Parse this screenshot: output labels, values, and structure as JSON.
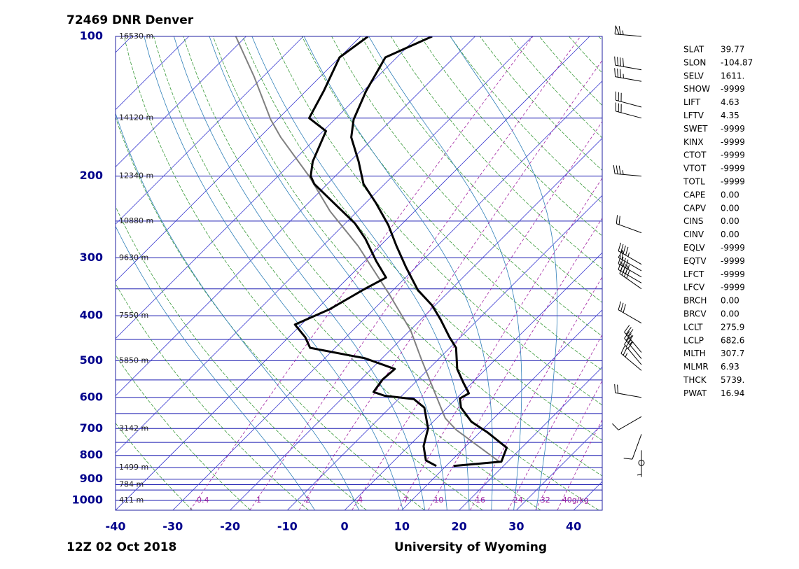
{
  "chart_data": {
    "type": "skewt",
    "title": "72469 DNR Denver",
    "subtitle": "12Z 02 Oct 2018",
    "source": "University of Wyoming",
    "ylim": [
      1050,
      100
    ],
    "yticks": [
      100,
      200,
      300,
      400,
      500,
      600,
      700,
      800,
      900,
      1000
    ],
    "xlim": [
      -40,
      45
    ],
    "xticks": [
      -40,
      -30,
      -20,
      -10,
      0,
      10,
      20,
      30,
      40
    ],
    "log_scale_y": true,
    "isobars": [
      100,
      150,
      200,
      250,
      300,
      350,
      400,
      450,
      500,
      550,
      600,
      650,
      700,
      750,
      800,
      850,
      900,
      925,
      950,
      1000
    ],
    "isotherms": [
      -120,
      -110,
      -100,
      -90,
      -80,
      -70,
      -60,
      -50,
      -40,
      -30,
      -20,
      -10,
      0,
      10,
      20,
      30,
      40
    ],
    "dry_adiabats": [
      -30,
      -20,
      -10,
      0,
      10,
      20,
      30,
      40,
      50,
      60,
      70,
      80,
      90,
      100,
      110,
      120,
      130,
      140,
      150,
      160,
      170,
      180
    ],
    "moist_adiabats": [
      -8,
      0,
      8,
      12,
      16,
      20,
      24,
      28,
      32
    ],
    "mixing_ratios": [
      {
        "value": 0.4,
        "label": "0.4"
      },
      1,
      2,
      4,
      7,
      10,
      16,
      24,
      32,
      {
        "value": 40,
        "label": "40g/kg"
      }
    ],
    "heights": [
      {
        "pressure": 100,
        "label": "16530 m"
      },
      {
        "pressure": 150,
        "label": "14120 m"
      },
      {
        "pressure": 200,
        "label": "12340 m"
      },
      {
        "pressure": 250,
        "label": "10880 m"
      },
      {
        "pressure": 300,
        "label": "9630 m"
      },
      {
        "pressure": 400,
        "label": "7550 m"
      },
      {
        "pressure": 500,
        "label": "5850 m"
      },
      {
        "pressure": 700,
        "label": "3142 m"
      },
      {
        "pressure": 850,
        "label": "1499 m"
      },
      {
        "pressure": 925,
        "label": "784 m"
      },
      {
        "pressure": 1000,
        "label": "411 m"
      }
    ],
    "temperature": {
      "color": "#000000",
      "pressure": [
        843,
        825,
        770,
        713,
        677,
        631,
        603,
        588,
        558,
        521,
        469,
        445,
        408,
        380,
        352,
        314,
        283,
        255,
        229,
        208,
        186,
        165,
        151,
        131,
        111,
        100
      ],
      "values": [
        11.3,
        18.9,
        17.4,
        11.3,
        6.7,
        2.4,
        0.6,
        1.3,
        -1.5,
        -5.0,
        -8.9,
        -11.9,
        -16.5,
        -20.5,
        -25.7,
        -31.8,
        -37.1,
        -42.2,
        -48.1,
        -53.7,
        -58.5,
        -64.0,
        -66.7,
        -69.5,
        -72.0,
        -67.5
      ]
    },
    "dewpoint": {
      "color": "#000000",
      "pressure": [
        843,
        820,
        764,
        700,
        631,
        605,
        595,
        584,
        549,
        521,
        494,
        469,
        445,
        418,
        387,
        351,
        331,
        305,
        273,
        253,
        208,
        200,
        186,
        160,
        150,
        131,
        111,
        100
      ],
      "values": [
        8.3,
        5.5,
        2.6,
        0.3,
        -4.0,
        -7.3,
        -13.0,
        -15.6,
        -16.2,
        -15.9,
        -23.0,
        -34.4,
        -37.1,
        -41.1,
        -37.7,
        -35.2,
        -33.4,
        -38.0,
        -43.8,
        -48.3,
        -62.3,
        -64.3,
        -66.5,
        -69.5,
        -74.7,
        -76.9,
        -80.0,
        -78.7
      ]
    },
    "parcel": {
      "color": "#808080",
      "pressure": [
        828,
        705,
        665,
        588,
        494,
        430,
        361,
        283,
        238,
        200,
        165,
        151,
        122,
        100
      ],
      "values": [
        18.8,
        5.5,
        1.5,
        -4.6,
        -13.2,
        -19.9,
        -29.7,
        -43.8,
        -54.8,
        -64.6,
        -76.3,
        -81.2,
        -91.6,
        -101.8
      ]
    },
    "winds": {
      "pressure": [
        100,
        118,
        125,
        142,
        150,
        200,
        265,
        310,
        320,
        330,
        340,
        350,
        415,
        480,
        495,
        510,
        525,
        600,
        660,
        720,
        780,
        830
      ],
      "direction": [
        275,
        280,
        280,
        285,
        285,
        275,
        290,
        300,
        300,
        300,
        300,
        305,
        300,
        320,
        320,
        320,
        310,
        280,
        240,
        200,
        180,
        170
      ],
      "speed": [
        65,
        40,
        35,
        30,
        30,
        35,
        20,
        45,
        50,
        45,
        40,
        40,
        30,
        35,
        35,
        30,
        25,
        20,
        10,
        10,
        5,
        0
      ]
    },
    "indices": [
      [
        "SLAT",
        "39.77"
      ],
      [
        "SLON",
        "-104.87"
      ],
      [
        "SELV",
        "1611."
      ],
      [
        "SHOW",
        "-9999"
      ],
      [
        "LIFT",
        "4.63"
      ],
      [
        "LFTV",
        "4.35"
      ],
      [
        "SWET",
        "-9999"
      ],
      [
        "KINX",
        "-9999"
      ],
      [
        "CTOT",
        "-9999"
      ],
      [
        "VTOT",
        "-9999"
      ],
      [
        "TOTL",
        "-9999"
      ],
      [
        "CAPE",
        "0.00"
      ],
      [
        "CAPV",
        "0.00"
      ],
      [
        "CINS",
        "0.00"
      ],
      [
        "CINV",
        "0.00"
      ],
      [
        "EQLV",
        "-9999"
      ],
      [
        "EQTV",
        "-9999"
      ],
      [
        "LFCT",
        "-9999"
      ],
      [
        "LFCV",
        "-9999"
      ],
      [
        "BRCH",
        "0.00"
      ],
      [
        "BRCV",
        "0.00"
      ],
      [
        "LCLT",
        "275.9"
      ],
      [
        "LCLP",
        "682.6"
      ],
      [
        "MLTH",
        "307.7"
      ],
      [
        "MLMR",
        "6.93"
      ],
      [
        "THCK",
        "5739."
      ],
      [
        "PWAT",
        "16.94"
      ]
    ]
  }
}
